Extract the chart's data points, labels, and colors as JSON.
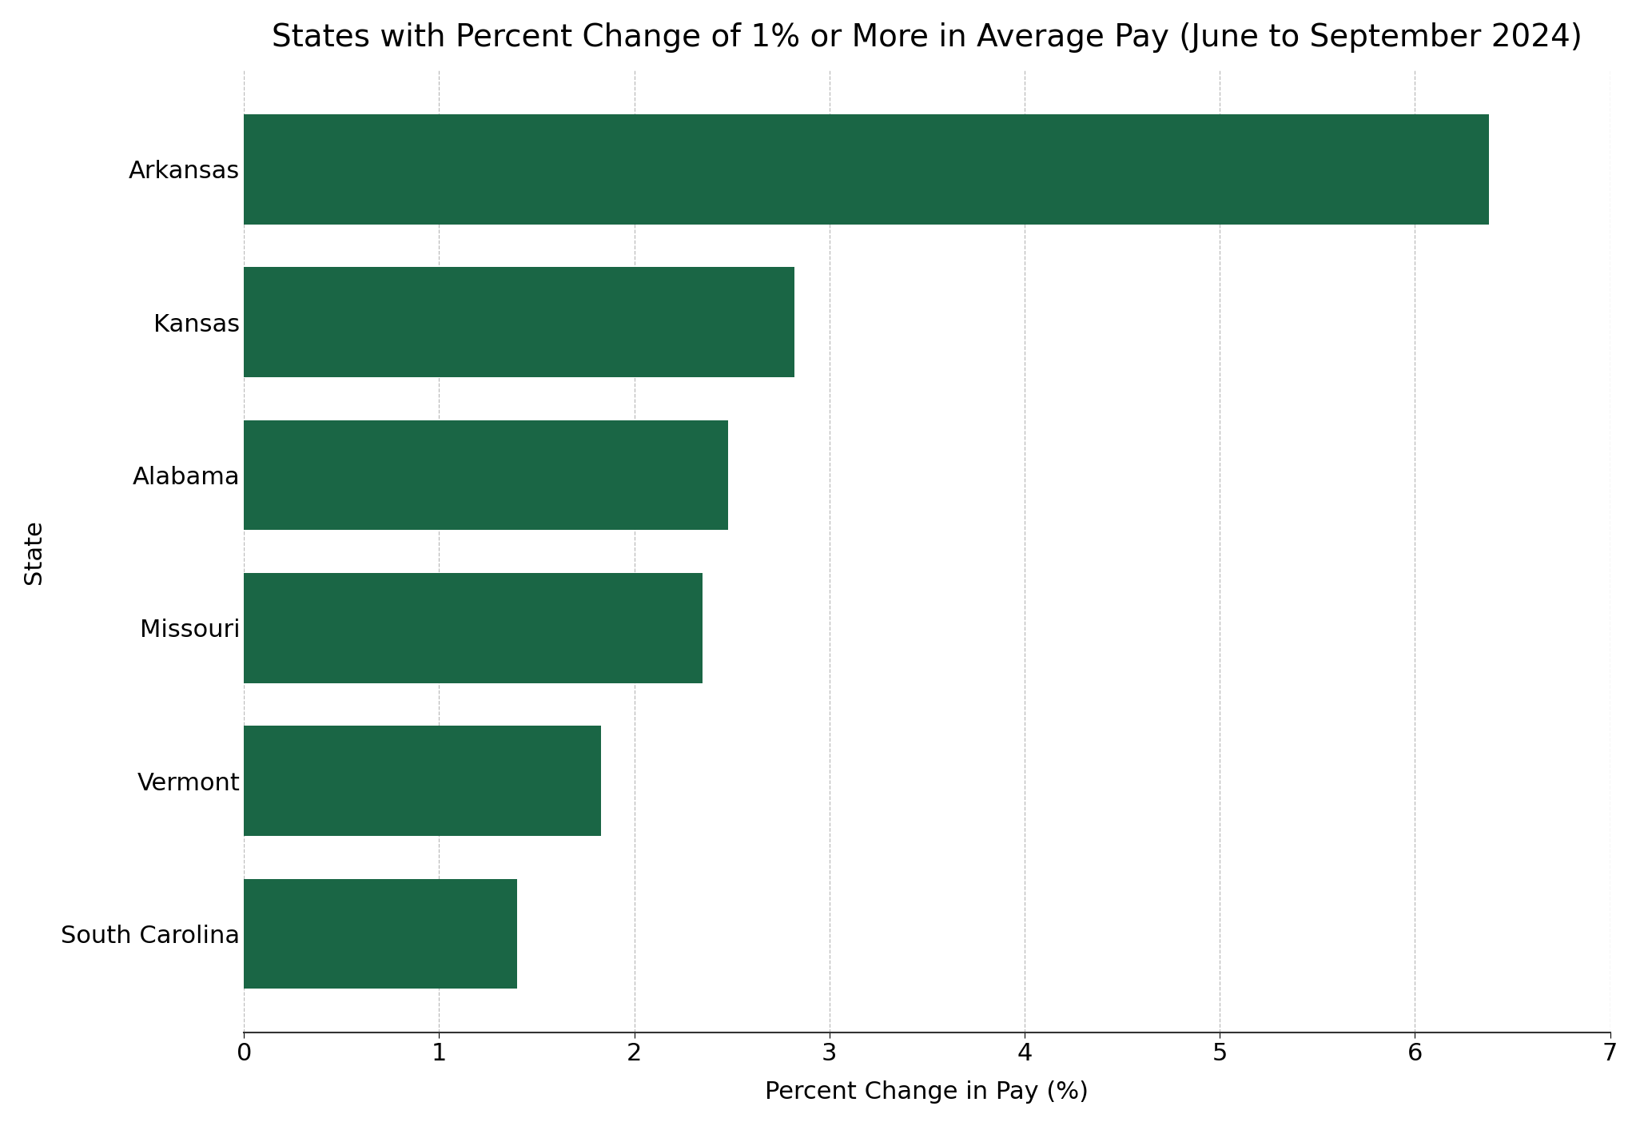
{
  "title": "States with Percent Change of 1% or More in Average Pay (June to September 2024)",
  "states": [
    "South Carolina",
    "Vermont",
    "Missouri",
    "Alabama",
    "Kansas",
    "Arkansas"
  ],
  "values": [
    1.4,
    1.83,
    2.35,
    2.48,
    2.82,
    6.38
  ],
  "bar_color": "#1a6645",
  "xlabel": "Percent Change in Pay (%)",
  "ylabel": "State",
  "xlim": [
    0,
    7
  ],
  "xticks": [
    0,
    1,
    2,
    3,
    4,
    5,
    6,
    7
  ],
  "background_color": "#ffffff",
  "title_fontsize": 28,
  "label_fontsize": 22,
  "tick_fontsize": 22,
  "bar_height": 0.72
}
